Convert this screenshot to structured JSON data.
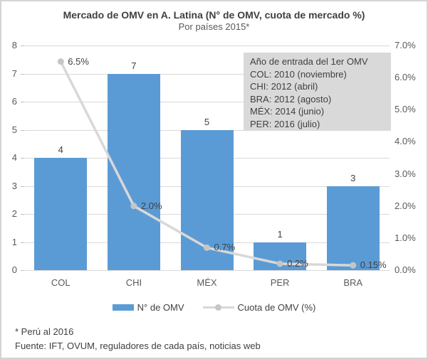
{
  "header": {
    "title": "Mercado de OMV en A. Latina (N° de OMV, cuota de mercado %)",
    "subtitle": "Por países 2015*"
  },
  "annotation": {
    "lines": [
      "Año de entrada del 1er OMV",
      "COL: 2010 (noviembre)",
      "CHI: 2012 (abril)",
      "BRA: 2012 (agosto)",
      "MÉX: 2014 (junio)",
      "PER: 2016 (julio)"
    ]
  },
  "legend": [
    {
      "type": "bar",
      "label": "N° de OMV"
    },
    {
      "type": "line",
      "label": "Cuota de OMV (%)"
    }
  ],
  "footnotes": [
    "* Perú al 2016",
    "Fuente: IFT, OVUM, reguladores de cada país, noticias web"
  ],
  "colors": {
    "bar": "#5B9BD5",
    "line": "#D8D8D8",
    "marker": "#C6C6C6",
    "grid": "#D9D9D9",
    "title_text": "#404040",
    "axis_text": "#595959",
    "annotation_bg": "#D9D9D9"
  },
  "chart_data": {
    "type": "combo bar+line",
    "title": "Mercado de OMV en A. Latina (N° de OMV, cuota de mercado %)",
    "subtitle": "Por países 2015*",
    "categories": [
      "COL",
      "CHI",
      "MÉX",
      "PER",
      "BRA"
    ],
    "series": [
      {
        "name": "N° de OMV",
        "type": "bar",
        "axis": "left",
        "values": [
          4,
          7,
          5,
          1,
          3
        ],
        "labels": [
          "4",
          "7",
          "5",
          "1",
          "3"
        ]
      },
      {
        "name": "Cuota de OMV (%)",
        "type": "line",
        "axis": "right",
        "values": [
          6.5,
          2.0,
          0.7,
          0.2,
          0.15
        ],
        "labels": [
          "6.5%",
          "2.0%",
          "0.7%",
          "0.2%",
          "0.15%"
        ]
      }
    ],
    "left_axis": {
      "min": 0,
      "max": 8,
      "step": 1,
      "ticks": [
        "0",
        "1",
        "2",
        "3",
        "4",
        "5",
        "6",
        "7",
        "8"
      ]
    },
    "right_axis": {
      "min": 0,
      "max": 7,
      "step": 1,
      "ticks": [
        "0.0%",
        "1.0%",
        "2.0%",
        "3.0%",
        "4.0%",
        "5.0%",
        "6.0%",
        "7.0%"
      ]
    },
    "grid": "horizontal",
    "legend_position": "bottom"
  }
}
